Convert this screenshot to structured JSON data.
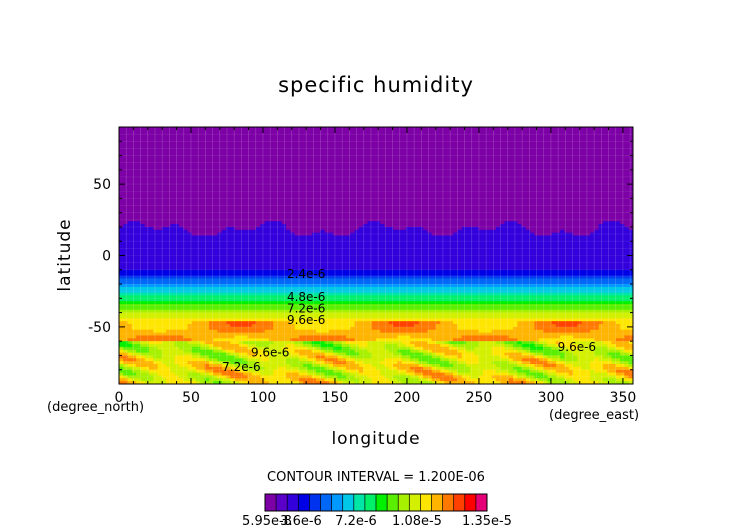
{
  "chart_data": {
    "type": "heatmap",
    "title": "specific humidity",
    "xlabel": "longitude",
    "ylabel": "latitude",
    "x_unit": "(degree_east)",
    "y_unit": "(degree_north)",
    "xlim": [
      0,
      357
    ],
    "ylim": [
      -90,
      90
    ],
    "x_ticks": [
      0,
      50,
      100,
      150,
      200,
      250,
      300,
      350
    ],
    "y_ticks": [
      -50,
      0,
      50
    ],
    "grid": true,
    "contour_interval_text": "CONTOUR INTERVAL = 1.200E-06",
    "colorbar": {
      "labels": [
        "5.95e-8",
        "3.6e-6",
        "7.2e-6",
        "1.08e-5",
        "1.35e-5"
      ],
      "colors": [
        "#7d00a6",
        "#5a00c8",
        "#3300dc",
        "#0000e6",
        "#0033ee",
        "#0066f5",
        "#0099ff",
        "#00c8e6",
        "#00e6a6",
        "#00f06a",
        "#00f000",
        "#5aef00",
        "#a6f000",
        "#d2f000",
        "#ffe600",
        "#ffb400",
        "#ff7800",
        "#ff4000",
        "#ff0000",
        "#e60078"
      ]
    },
    "contour_labels": [
      {
        "text": "2.4e-6",
        "lon": 130,
        "lat": -13
      },
      {
        "text": "4.8e-6",
        "lon": 130,
        "lat": -29
      },
      {
        "text": "7.2e-6",
        "lon": 130,
        "lat": -37
      },
      {
        "text": "9.6e-6",
        "lon": 130,
        "lat": -45
      },
      {
        "text": "9.6e-6",
        "lon": 105,
        "lat": -68
      },
      {
        "text": "7.2e-6",
        "lon": 85,
        "lat": -78
      },
      {
        "text": "9.6e-6",
        "lon": 318,
        "lat": -64
      }
    ]
  }
}
